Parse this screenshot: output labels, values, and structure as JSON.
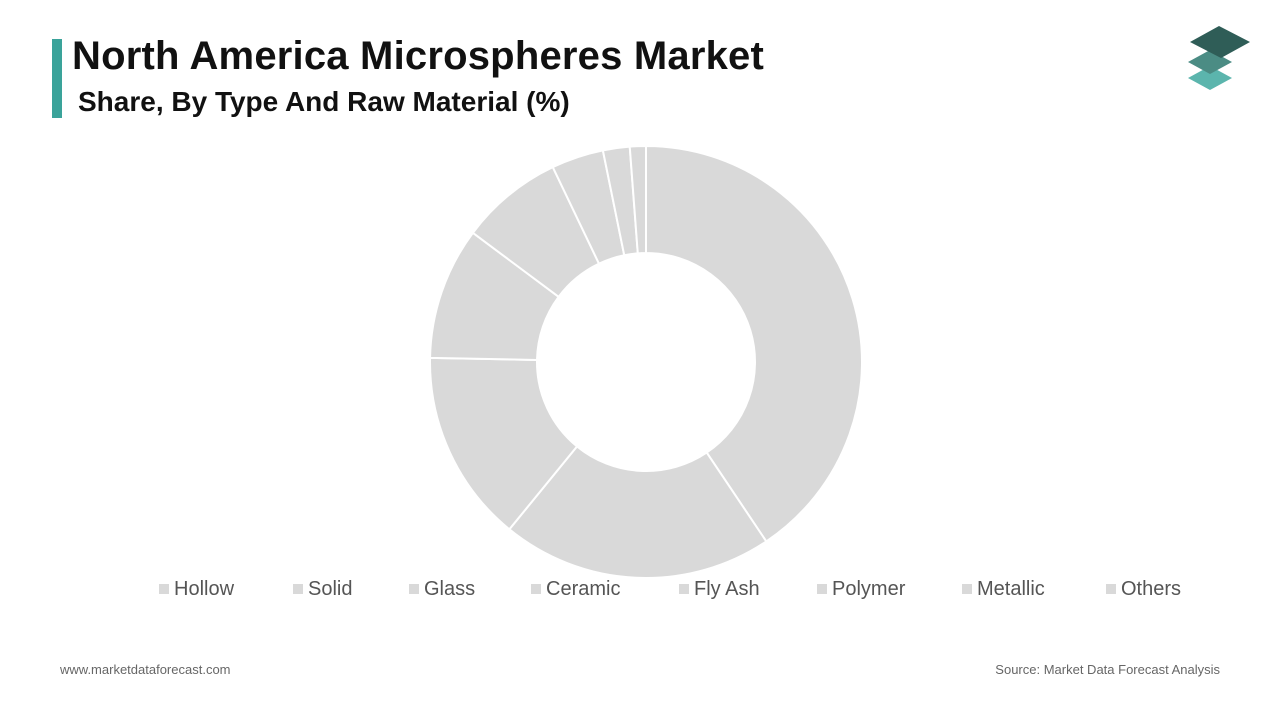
{
  "header": {
    "title": "North America Microspheres Market",
    "subtitle": "Share, By Type And Raw Material (%)"
  },
  "colors": {
    "accent": "#3aa39a",
    "slice": "#d9d9d9",
    "slice_border": "#ffffff",
    "legend_marker": "#d9d9d9",
    "legend_text": "#555555",
    "logo_top": "#2f5d57",
    "logo_mid": "#4b8c84",
    "logo_bottom": "#5bb5ad"
  },
  "logo": {
    "icon": "stacked-layers-icon"
  },
  "chart_data": {
    "type": "pie",
    "donut": true,
    "categories": [
      "Hollow",
      "Solid",
      "Glass",
      "Ceramic",
      "Fly Ash",
      "Polymer",
      "Metallic",
      "Others"
    ],
    "values": [
      40.6,
      20.3,
      14.4,
      9.9,
      7.7,
      3.9,
      2.0,
      1.2
    ],
    "legend_position": "bottom"
  },
  "footer": {
    "website": "www.marketdataforecast.com",
    "source": "Source: Market Data Forecast Analysis"
  }
}
